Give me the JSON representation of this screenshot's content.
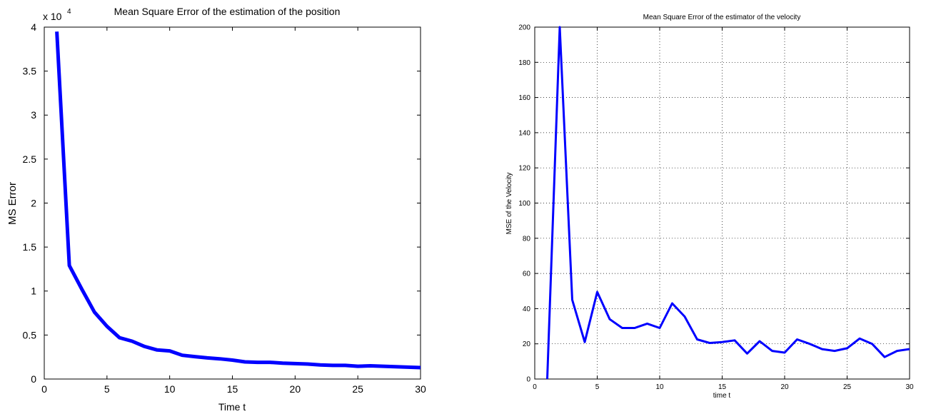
{
  "chart_data": [
    {
      "type": "line",
      "title": "Mean Square Error of the estimation of the position",
      "xlabel": "Time t",
      "ylabel": "MS Error",
      "y_multiplier": "x 10",
      "y_multiplier_exp": "4",
      "xlim": [
        0,
        30
      ],
      "ylim": [
        0,
        40000
      ],
      "grid": false,
      "line_color": "#0000ff",
      "x_ticks": [
        0,
        5,
        10,
        15,
        20,
        25,
        30
      ],
      "x_tick_labels": [
        "0",
        "5",
        "10",
        "15",
        "20",
        "25",
        "30"
      ],
      "y_ticks": [
        0,
        5000,
        10000,
        15000,
        20000,
        25000,
        30000,
        35000,
        40000
      ],
      "y_tick_labels": [
        "0",
        "0.5",
        "1",
        "1.5",
        "2",
        "2.5",
        "3",
        "3.5",
        "4"
      ],
      "series": [
        {
          "x": [
            1,
            2,
            3,
            4,
            5,
            6,
            7,
            8,
            9,
            10,
            11,
            12,
            13,
            14,
            15,
            16,
            17,
            18,
            19,
            20,
            21,
            22,
            23,
            24,
            25,
            26,
            27,
            28,
            29,
            30
          ],
          "values": [
            39500,
            12900,
            10200,
            7600,
            6000,
            4700,
            4300,
            3700,
            3300,
            3200,
            2700,
            2550,
            2400,
            2300,
            2150,
            1950,
            1900,
            1900,
            1800,
            1750,
            1700,
            1600,
            1550,
            1550,
            1450,
            1500,
            1450,
            1400,
            1350,
            1300
          ]
        }
      ]
    },
    {
      "type": "line",
      "title": "Mean Square Error of the estimator of the velocity",
      "xlabel": "time t",
      "ylabel": "MSE of the Velocity",
      "xlim": [
        0,
        30
      ],
      "ylim": [
        0,
        200
      ],
      "grid": true,
      "line_color": "#0000ff",
      "x_ticks": [
        0,
        5,
        10,
        15,
        20,
        25,
        30
      ],
      "x_tick_labels": [
        "0",
        "5",
        "10",
        "15",
        "20",
        "25",
        "30"
      ],
      "y_ticks": [
        0,
        20,
        40,
        60,
        80,
        100,
        120,
        140,
        160,
        180,
        200
      ],
      "y_tick_labels": [
        "0",
        "20",
        "40",
        "60",
        "80",
        "100",
        "120",
        "140",
        "160",
        "180",
        "200"
      ],
      "series": [
        {
          "x": [
            1,
            2,
            3,
            4,
            5,
            6,
            7,
            8,
            9,
            10,
            11,
            12,
            13,
            14,
            15,
            16,
            17,
            18,
            19,
            20,
            21,
            22,
            23,
            24,
            25,
            26,
            27,
            28,
            29,
            30
          ],
          "values": [
            0,
            200,
            45,
            21,
            49.5,
            34,
            29,
            29,
            31.5,
            29,
            43,
            35.5,
            22.5,
            20.5,
            21,
            22,
            14.5,
            21.5,
            16,
            15,
            22.5,
            20,
            17,
            16,
            17.5,
            23,
            20,
            12.5,
            16,
            17
          ]
        }
      ]
    }
  ]
}
